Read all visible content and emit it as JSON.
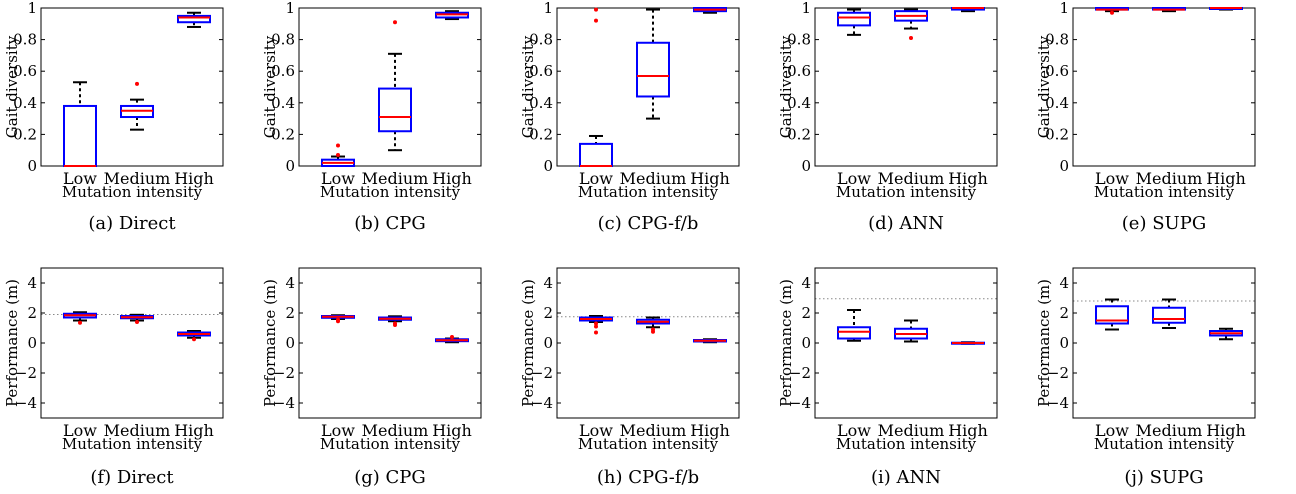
{
  "chart_data": [
    {
      "type": "box",
      "caption": "(a) Direct",
      "xlabel": "Mutation intensity",
      "ylabel": "Gait diversity",
      "ylim": [
        0,
        1.0
      ],
      "yticks": [
        0,
        0.2,
        0.4,
        0.6,
        0.8,
        1
      ],
      "ytick_labels": [
        "0",
        "0.2",
        "0.4",
        "0.6",
        "0.8",
        "1"
      ],
      "categories": [
        "Low",
        "Medium",
        "High"
      ],
      "boxes": [
        {
          "whisker_low": 0.0,
          "q1": 0.0,
          "median": 0.0,
          "q3": 0.38,
          "whisker_high": 0.53,
          "outliers": []
        },
        {
          "whisker_low": 0.23,
          "q1": 0.31,
          "median": 0.35,
          "q3": 0.38,
          "whisker_high": 0.42,
          "outliers": [
            0.52
          ]
        },
        {
          "whisker_low": 0.88,
          "q1": 0.91,
          "median": 0.94,
          "q3": 0.95,
          "whisker_high": 0.97,
          "outliers": []
        }
      ]
    },
    {
      "type": "box",
      "caption": "(b) CPG",
      "xlabel": "Mutation intensity",
      "ylabel": "Gait diversity",
      "ylim": [
        0,
        1.0
      ],
      "yticks": [
        0,
        0.2,
        0.4,
        0.6,
        0.8,
        1
      ],
      "ytick_labels": [
        "0",
        "0.2",
        "0.4",
        "0.6",
        "0.8",
        "1"
      ],
      "categories": [
        "Low",
        "Medium",
        "High"
      ],
      "boxes": [
        {
          "whisker_low": 0.0,
          "q1": 0.0,
          "median": 0.02,
          "q3": 0.04,
          "whisker_high": 0.06,
          "outliers": [
            0.07,
            0.13
          ]
        },
        {
          "whisker_low": 0.1,
          "q1": 0.22,
          "median": 0.31,
          "q3": 0.49,
          "whisker_high": 0.71,
          "outliers": [
            0.91
          ]
        },
        {
          "whisker_low": 0.93,
          "q1": 0.94,
          "median": 0.96,
          "q3": 0.97,
          "whisker_high": 0.98,
          "outliers": []
        }
      ]
    },
    {
      "type": "box",
      "caption": "(c) CPG-f/b",
      "xlabel": "Mutation intensity",
      "ylabel": "Gait diversity",
      "ylim": [
        0,
        1.0
      ],
      "yticks": [
        0,
        0.2,
        0.4,
        0.6,
        0.8,
        1
      ],
      "ytick_labels": [
        "0",
        "0.2",
        "0.4",
        "0.6",
        "0.8",
        "1"
      ],
      "categories": [
        "Low",
        "Medium",
        "High"
      ],
      "boxes": [
        {
          "whisker_low": 0.0,
          "q1": 0.0,
          "median": 0.0,
          "q3": 0.14,
          "whisker_high": 0.19,
          "outliers": [
            0.92,
            0.99
          ]
        },
        {
          "whisker_low": 0.3,
          "q1": 0.44,
          "median": 0.57,
          "q3": 0.78,
          "whisker_high": 0.99,
          "outliers": []
        },
        {
          "whisker_low": 0.97,
          "q1": 0.98,
          "median": 0.99,
          "q3": 1.0,
          "whisker_high": 1.0,
          "outliers": []
        }
      ]
    },
    {
      "type": "box",
      "caption": "(d) ANN",
      "xlabel": "Mutation intensity",
      "ylabel": "Gait diversity",
      "ylim": [
        0,
        1.0
      ],
      "yticks": [
        0,
        0.2,
        0.4,
        0.6,
        0.8,
        1
      ],
      "ytick_labels": [
        "0",
        "0.2",
        "0.4",
        "0.6",
        "0.8",
        "1"
      ],
      "categories": [
        "Low",
        "Medium",
        "High"
      ],
      "boxes": [
        {
          "whisker_low": 0.83,
          "q1": 0.89,
          "median": 0.94,
          "q3": 0.97,
          "whisker_high": 0.99,
          "outliers": []
        },
        {
          "whisker_low": 0.87,
          "q1": 0.92,
          "median": 0.95,
          "q3": 0.98,
          "whisker_high": 0.99,
          "outliers": [
            0.81
          ]
        },
        {
          "whisker_low": 0.98,
          "q1": 0.99,
          "median": 1.0,
          "q3": 1.0,
          "whisker_high": 1.0,
          "outliers": []
        }
      ]
    },
    {
      "type": "box",
      "caption": "(e) SUPG",
      "xlabel": "Mutation intensity",
      "ylabel": "Gait diversity",
      "ylim": [
        0,
        1.0
      ],
      "yticks": [
        0,
        0.2,
        0.4,
        0.6,
        0.8,
        1
      ],
      "ytick_labels": [
        "0",
        "0.2",
        "0.4",
        "0.6",
        "0.8",
        "1"
      ],
      "categories": [
        "Low",
        "Medium",
        "High"
      ],
      "boxes": [
        {
          "whisker_low": 0.98,
          "q1": 0.99,
          "median": 0.99,
          "q3": 1.0,
          "whisker_high": 1.0,
          "outliers": [
            0.97
          ]
        },
        {
          "whisker_low": 0.98,
          "q1": 0.99,
          "median": 0.99,
          "q3": 1.0,
          "whisker_high": 1.0,
          "outliers": []
        },
        {
          "whisker_low": 0.99,
          "q1": 1.0,
          "median": 1.0,
          "q3": 1.0,
          "whisker_high": 1.0,
          "outliers": []
        }
      ]
    },
    {
      "type": "box",
      "caption": "(f) Direct",
      "xlabel": "Mutation intensity",
      "ylabel": "Performance (m)",
      "ylim": [
        -5,
        5
      ],
      "yticks": [
        -4,
        -2,
        0,
        2,
        4
      ],
      "ytick_labels": [
        "−4",
        "−2",
        "0",
        "2",
        "4"
      ],
      "categories": [
        "Low",
        "Medium",
        "High"
      ],
      "reference_line": 1.9,
      "boxes": [
        {
          "whisker_low": 1.5,
          "q1": 1.7,
          "median": 1.85,
          "q3": 1.95,
          "whisker_high": 2.05,
          "outliers": [
            1.35
          ]
        },
        {
          "whisker_low": 1.5,
          "q1": 1.65,
          "median": 1.72,
          "q3": 1.8,
          "whisker_high": 1.88,
          "outliers": [
            1.4
          ]
        },
        {
          "whisker_low": 0.35,
          "q1": 0.5,
          "median": 0.6,
          "q3": 0.7,
          "whisker_high": 0.8,
          "outliers": [
            0.25
          ]
        }
      ]
    },
    {
      "type": "box",
      "caption": "(g) CPG",
      "xlabel": "Mutation intensity",
      "ylabel": "Performance (m)",
      "ylim": [
        -5,
        5
      ],
      "yticks": [
        -4,
        -2,
        0,
        2,
        4
      ],
      "ytick_labels": [
        "−4",
        "−2",
        "0",
        "2",
        "4"
      ],
      "categories": [
        "Low",
        "Medium",
        "High"
      ],
      "boxes": [
        {
          "whisker_low": 1.6,
          "q1": 1.68,
          "median": 1.75,
          "q3": 1.8,
          "whisker_high": 1.85,
          "outliers": [
            1.45,
            1.55
          ]
        },
        {
          "whisker_low": 1.45,
          "q1": 1.55,
          "median": 1.62,
          "q3": 1.7,
          "whisker_high": 1.78,
          "outliers": [
            1.2,
            1.3
          ]
        },
        {
          "whisker_low": 0.05,
          "q1": 0.12,
          "median": 0.18,
          "q3": 0.25,
          "whisker_high": 0.3,
          "outliers": [
            0.4
          ]
        }
      ]
    },
    {
      "type": "box",
      "caption": "(h) CPG-f/b",
      "xlabel": "Mutation intensity",
      "ylabel": "Performance (m)",
      "ylim": [
        -5,
        5
      ],
      "yticks": [
        -4,
        -2,
        0,
        2,
        4
      ],
      "ytick_labels": [
        "−4",
        "−2",
        "0",
        "2",
        "4"
      ],
      "categories": [
        "Low",
        "Medium",
        "High"
      ],
      "reference_line": 1.75,
      "boxes": [
        {
          "whisker_low": 1.4,
          "q1": 1.5,
          "median": 1.6,
          "q3": 1.7,
          "whisker_high": 1.8,
          "outliers": [
            0.7,
            1.1,
            1.3
          ]
        },
        {
          "whisker_low": 1.05,
          "q1": 1.3,
          "median": 1.42,
          "q3": 1.55,
          "whisker_high": 1.7,
          "outliers": [
            0.75,
            0.9
          ]
        },
        {
          "whisker_low": 0.05,
          "q1": 0.1,
          "median": 0.15,
          "q3": 0.2,
          "whisker_high": 0.25,
          "outliers": []
        }
      ]
    },
    {
      "type": "box",
      "caption": "(i) ANN",
      "xlabel": "Mutation intensity",
      "ylabel": "Performance (m)",
      "ylim": [
        -5,
        5
      ],
      "yticks": [
        -4,
        -2,
        0,
        2,
        4
      ],
      "ytick_labels": [
        "−4",
        "−2",
        "0",
        "2",
        "4"
      ],
      "categories": [
        "Low",
        "Medium",
        "High"
      ],
      "reference_line": 2.95,
      "boxes": [
        {
          "whisker_low": 0.15,
          "q1": 0.3,
          "median": 0.75,
          "q3": 1.05,
          "whisker_high": 2.2,
          "outliers": []
        },
        {
          "whisker_low": 0.1,
          "q1": 0.3,
          "median": 0.6,
          "q3": 0.95,
          "whisker_high": 1.5,
          "outliers": []
        },
        {
          "whisker_low": -0.05,
          "q1": -0.02,
          "median": 0.0,
          "q3": 0.02,
          "whisker_high": 0.05,
          "outliers": []
        }
      ]
    },
    {
      "type": "box",
      "caption": "(j) SUPG",
      "xlabel": "Mutation intensity",
      "ylabel": "Performance (m)",
      "ylim": [
        -5,
        5
      ],
      "yticks": [
        -4,
        -2,
        0,
        2,
        4
      ],
      "ytick_labels": [
        "−4",
        "−2",
        "0",
        "2",
        "4"
      ],
      "categories": [
        "Low",
        "Medium",
        "High"
      ],
      "reference_line": 2.8,
      "boxes": [
        {
          "whisker_low": 0.9,
          "q1": 1.3,
          "median": 1.5,
          "q3": 2.45,
          "whisker_high": 2.9,
          "outliers": []
        },
        {
          "whisker_low": 1.0,
          "q1": 1.35,
          "median": 1.6,
          "q3": 2.35,
          "whisker_high": 2.9,
          "outliers": []
        },
        {
          "whisker_low": 0.25,
          "q1": 0.5,
          "median": 0.65,
          "q3": 0.8,
          "whisker_high": 0.95,
          "outliers": []
        }
      ]
    }
  ],
  "colors": {
    "box": "#0000ff",
    "median": "#ff0000",
    "whisker": "#000000",
    "outlier": "#ff0000",
    "reference_line": "#888888"
  }
}
